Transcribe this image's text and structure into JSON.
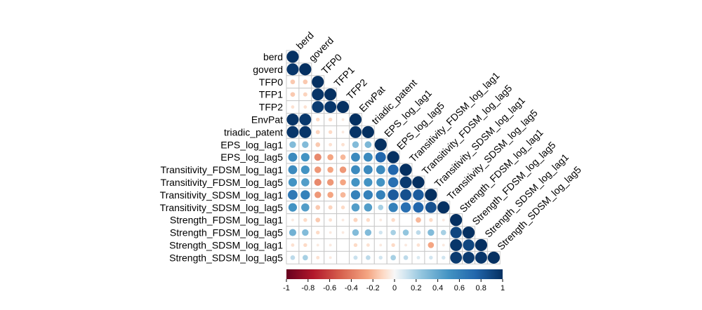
{
  "chart_data": {
    "type": "heatmap",
    "subtype": "correlation-lower-triangle-circles",
    "title": "",
    "variables": [
      "berd",
      "goverd",
      "TFP0",
      "TFP1",
      "TFP2",
      "EnvPat",
      "triadic_patent",
      "EPS_log_lag1",
      "EPS_log_lag5",
      "Transitivity_FDSM_log_lag1",
      "Transitivity_FDSM_log_lag5",
      "Transitivity_SDSM_log_lag1",
      "Transitivity_SDSM_log_lag5",
      "Strength_FDSM_log_lag1",
      "Strength_FDSM_log_lag5",
      "Strength_SDSM_log_lag1",
      "Strength_SDSM_log_lag5"
    ],
    "matrix_lower": [
      [
        1.0
      ],
      [
        0.97,
        1.0
      ],
      [
        -0.15,
        -0.15,
        1.0
      ],
      [
        -0.15,
        -0.12,
        0.98,
        1.0
      ],
      [
        -0.08,
        -0.08,
        0.95,
        0.97,
        1.0
      ],
      [
        0.98,
        0.96,
        -0.1,
        -0.1,
        -0.05,
        1.0
      ],
      [
        0.97,
        0.97,
        -0.12,
        -0.1,
        -0.05,
        0.98,
        1.0
      ],
      [
        0.3,
        0.3,
        -0.15,
        -0.08,
        -0.08,
        0.3,
        0.32,
        1.0
      ],
      [
        0.55,
        0.5,
        -0.35,
        -0.25,
        -0.2,
        0.55,
        0.55,
        0.75,
        1.0
      ],
      [
        0.55,
        0.5,
        -0.3,
        -0.25,
        -0.3,
        0.55,
        0.55,
        0.55,
        0.75,
        1.0
      ],
      [
        0.5,
        0.45,
        -0.35,
        -0.3,
        -0.25,
        0.5,
        0.5,
        0.5,
        0.7,
        0.95,
        1.0
      ],
      [
        0.65,
        0.6,
        -0.3,
        -0.25,
        -0.2,
        0.6,
        0.6,
        0.6,
        0.8,
        0.85,
        0.8,
        1.0
      ],
      [
        0.5,
        0.45,
        -0.15,
        -0.12,
        -0.1,
        0.45,
        0.45,
        0.2,
        0.6,
        0.7,
        0.75,
        0.85,
        1.0
      ],
      [
        -0.05,
        -0.1,
        -0.15,
        -0.08,
        -0.05,
        -0.12,
        -0.1,
        -0.05,
        -0.1,
        0.0,
        -0.2,
        -0.1,
        -0.05,
        1.0
      ],
      [
        0.35,
        0.3,
        -0.1,
        -0.05,
        -0.05,
        0.3,
        0.3,
        0.1,
        0.2,
        0.25,
        0.15,
        0.3,
        0.2,
        0.9,
        1.0
      ],
      [
        -0.08,
        -0.1,
        -0.05,
        -0.05,
        0.0,
        -0.1,
        -0.08,
        -0.05,
        -0.1,
        -0.05,
        -0.08,
        -0.25,
        -0.05,
        0.97,
        0.9,
        1.0
      ],
      [
        0.15,
        0.2,
        -0.08,
        -0.05,
        0.0,
        0.12,
        0.15,
        0.1,
        0.2,
        0.15,
        0.08,
        0.1,
        0.1,
        0.95,
        0.95,
        0.97,
        1.0
      ]
    ],
    "colorbar": {
      "ticks": [
        "-1",
        "-0.8",
        "-0.6",
        "-0.4",
        "-0.2",
        "0",
        "0.2",
        "0.4",
        "0.6",
        "0.8",
        "1"
      ],
      "range": [
        -1,
        1
      ],
      "low_color": "#67001F",
      "mid_color": "#F7F7F7",
      "high_color": "#053061"
    },
    "legend_placement": "bottom",
    "grid": true
  }
}
